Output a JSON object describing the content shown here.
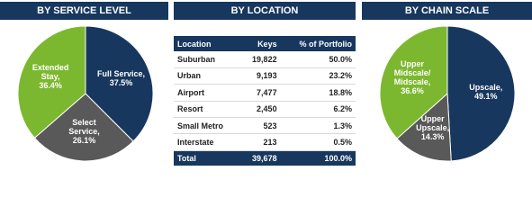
{
  "chart_data": [
    {
      "type": "pie",
      "title": "BY SERVICE LEVEL",
      "categories": [
        "Full Service,",
        "Select Service,",
        "Extended Stay,"
      ],
      "values": [
        37.5,
        26.1,
        36.4
      ],
      "value_labels": [
        "37.5%",
        "26.1%",
        "36.4%"
      ],
      "colors": [
        "#17375e",
        "#595959",
        "#7cb82f"
      ]
    },
    {
      "type": "pie",
      "title": "BY CHAIN SCALE",
      "categories": [
        "Upscale,",
        "Upper Upscale,",
        "Upper Midscale/ Midscale,"
      ],
      "values": [
        49.1,
        14.3,
        36.6
      ],
      "value_labels": [
        "49.1%",
        "14.3%",
        "36.6%"
      ],
      "colors": [
        "#17375e",
        "#595959",
        "#7cb82f"
      ]
    }
  ],
  "table": {
    "title": "BY LOCATION",
    "columns": [
      "Location",
      "Keys",
      "% of Portfolio"
    ],
    "rows": [
      [
        "Suburban",
        "19,822",
        "50.0%"
      ],
      [
        "Urban",
        "9,193",
        "23.2%"
      ],
      [
        "Airport",
        "7,477",
        "18.8%"
      ],
      [
        "Resort",
        "2,450",
        "6.2%"
      ],
      [
        "Small Metro",
        "523",
        "1.3%"
      ],
      [
        "Interstate",
        "213",
        "0.5%"
      ]
    ],
    "total": [
      "Total",
      "39,678",
      "100.0%"
    ]
  }
}
